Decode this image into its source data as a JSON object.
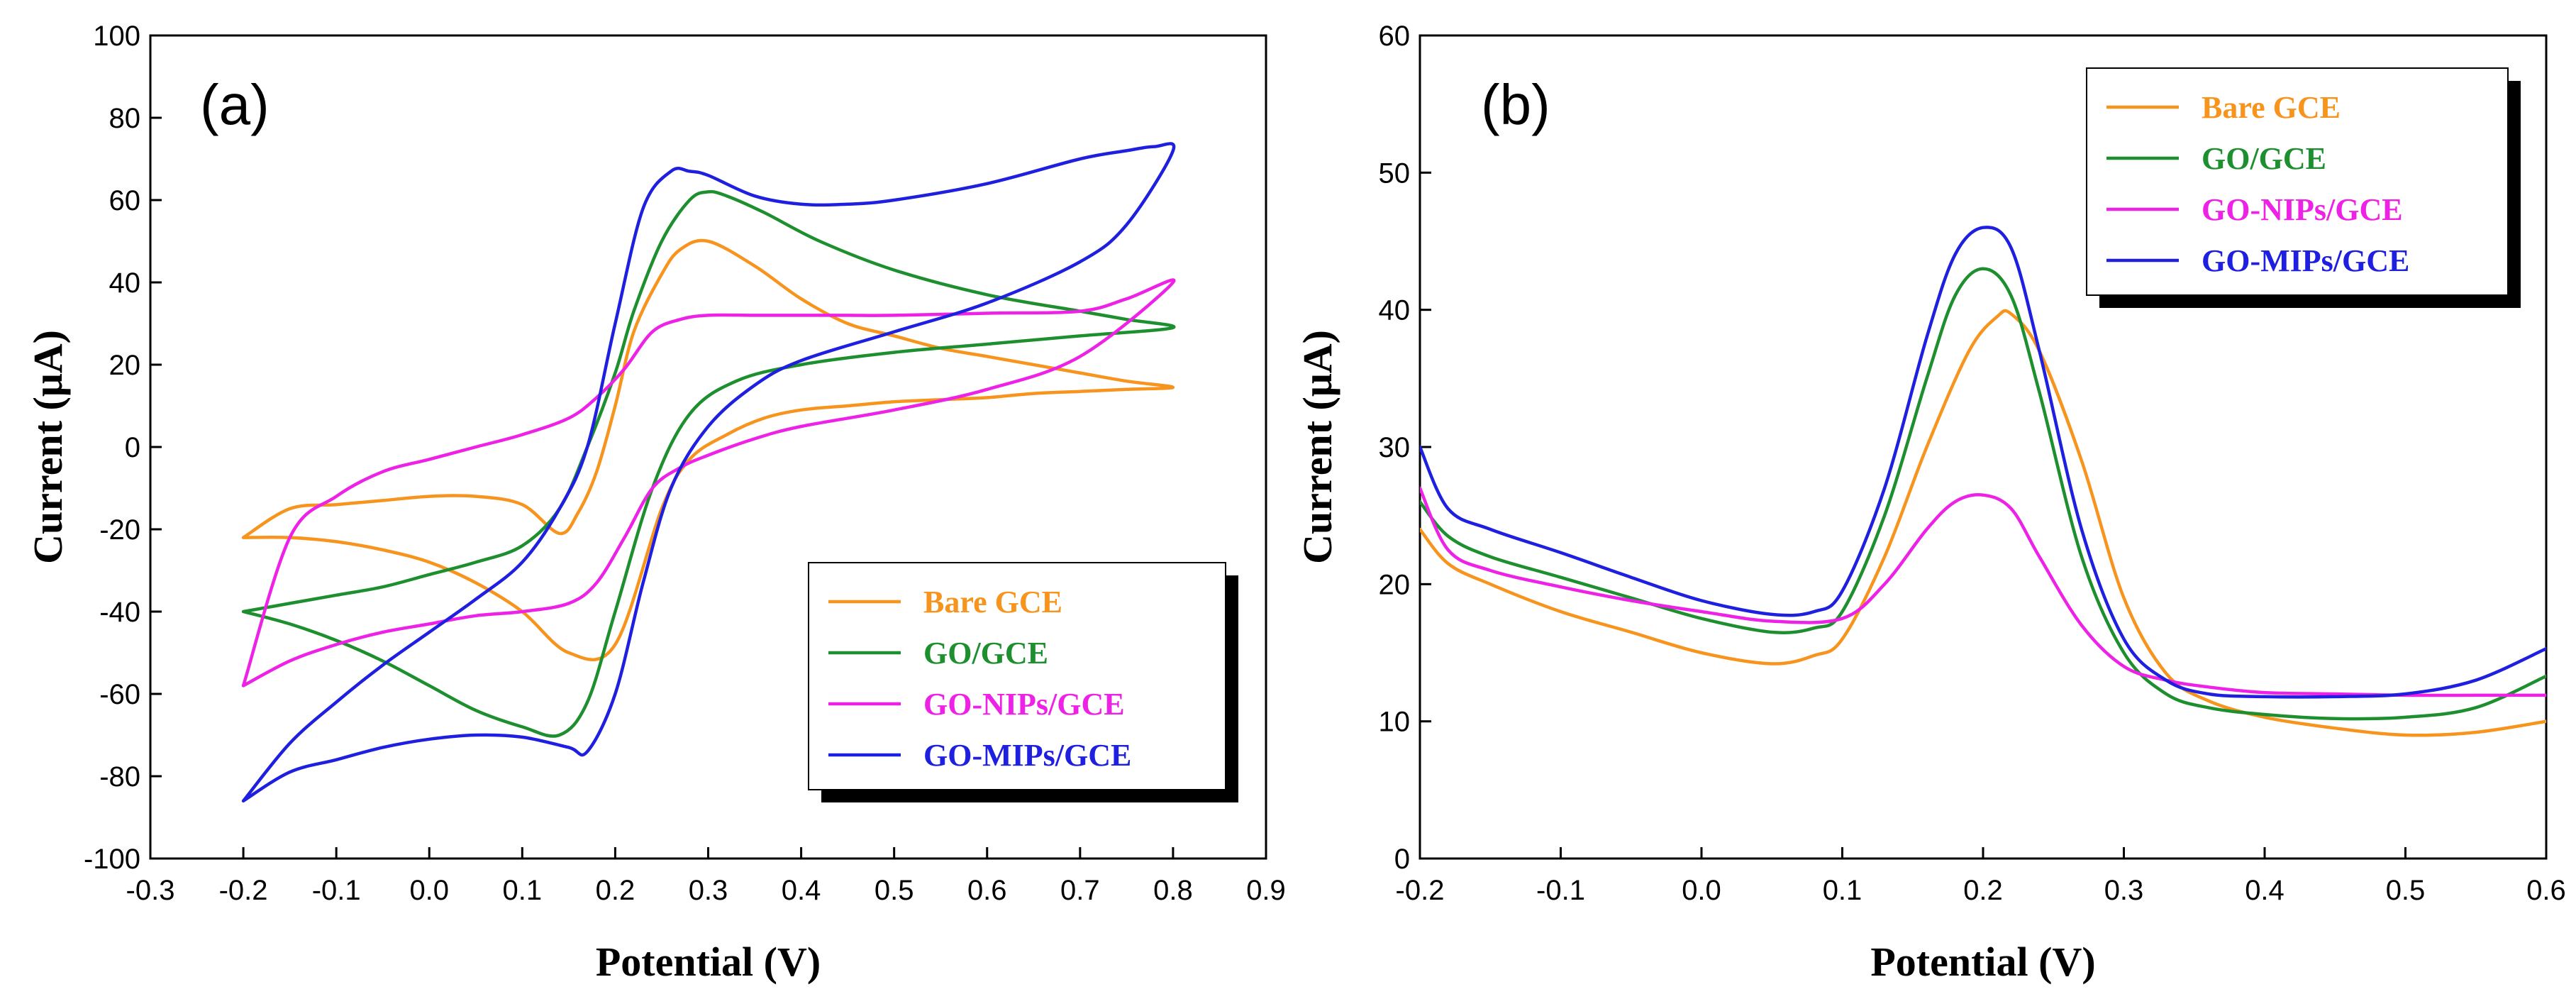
{
  "chart_data": [
    {
      "type": "line",
      "panel_label": "(a)",
      "xlabel": "Potential (V)",
      "ylabel": "Current (μA)",
      "xlim": [
        -0.3,
        0.9
      ],
      "ylim": [
        -100,
        100
      ],
      "xticks": [
        "-0.3",
        "-0.2",
        "-0.1",
        "0.0",
        "0.1",
        "0.2",
        "0.3",
        "0.4",
        "0.5",
        "0.6",
        "0.7",
        "0.8",
        "0.9"
      ],
      "yticks": [
        "-100",
        "-80",
        "-60",
        "-40",
        "-20",
        "0",
        "20",
        "40",
        "60",
        "80",
        "100"
      ],
      "legend_position": "bottom-right",
      "series": [
        {
          "name": "Bare GCE",
          "color": "#F7941D",
          "x": [
            -0.2,
            -0.15,
            -0.1,
            -0.05,
            0.0,
            0.05,
            0.1,
            0.15,
            0.2,
            0.25,
            0.28,
            0.32,
            0.36,
            0.4,
            0.45,
            0.5,
            0.55,
            0.6,
            0.65,
            0.7,
            0.75,
            0.8,
            0.75,
            0.7,
            0.65,
            0.6,
            0.55,
            0.5,
            0.45,
            0.4,
            0.35,
            0.3,
            0.27,
            0.25,
            0.22,
            0.2,
            0.18,
            0.16,
            0.14,
            0.1,
            0.05,
            0.0,
            -0.05,
            -0.1,
            -0.15,
            -0.2
          ],
          "y": [
            -22,
            -22,
            -23,
            -25,
            -28,
            -33,
            -40,
            -50,
            -48,
            -15,
            -3,
            3,
            7,
            9,
            10,
            11,
            11.5,
            12,
            13,
            13.5,
            14,
            14.5,
            16,
            18,
            20,
            22,
            24,
            27,
            30,
            36,
            44,
            50,
            48,
            42,
            28,
            10,
            -6,
            -16,
            -21,
            -14,
            -12,
            -12,
            -13,
            -14,
            -15,
            -22
          ]
        },
        {
          "name": "GO/GCE",
          "color": "#1E8F2E",
          "x": [
            -0.2,
            -0.15,
            -0.1,
            -0.05,
            0.0,
            0.05,
            0.1,
            0.14,
            0.17,
            0.2,
            0.24,
            0.28,
            0.33,
            0.4,
            0.5,
            0.6,
            0.7,
            0.8,
            0.75,
            0.7,
            0.6,
            0.5,
            0.42,
            0.36,
            0.32,
            0.3,
            0.28,
            0.25,
            0.22,
            0.2,
            0.17,
            0.14,
            0.1,
            0.05,
            0.0,
            -0.05,
            -0.1,
            -0.15,
            -0.2
          ],
          "y": [
            -40,
            -43,
            -47,
            -52,
            -58,
            -64,
            -68,
            -70,
            -62,
            -40,
            -10,
            8,
            16,
            20,
            23,
            25,
            27,
            29,
            31,
            33,
            37,
            43,
            50,
            57,
            61,
            62,
            60,
            50,
            33,
            18,
            0,
            -15,
            -24,
            -28,
            -31,
            -34,
            -36,
            -38,
            -40
          ]
        },
        {
          "name": "GO-NIPs/GCE",
          "color": "#EE22E6",
          "x": [
            -0.2,
            -0.15,
            -0.1,
            -0.05,
            0.0,
            0.05,
            0.1,
            0.15,
            0.18,
            0.21,
            0.24,
            0.27,
            0.3,
            0.35,
            0.4,
            0.5,
            0.6,
            0.7,
            0.8,
            0.75,
            0.7,
            0.6,
            0.5,
            0.45,
            0.4,
            0.35,
            0.3,
            0.27,
            0.24,
            0.21,
            0.18,
            0.15,
            0.1,
            0.05,
            0.0,
            -0.05,
            -0.1,
            -0.15,
            -0.2
          ],
          "y": [
            -58,
            -52,
            -48,
            -45,
            -43,
            -41,
            -40,
            -38,
            -33,
            -22,
            -10,
            -5,
            -2,
            2,
            5,
            9,
            14,
            22,
            40,
            36,
            33,
            32.5,
            32,
            32,
            32,
            32,
            32,
            31,
            28,
            19,
            12,
            7,
            3,
            0,
            -3,
            -6,
            -12,
            -22,
            -58
          ]
        },
        {
          "name": "GO-MIPs/GCE",
          "color": "#1F1FE0",
          "x": [
            -0.2,
            -0.15,
            -0.1,
            -0.05,
            0.0,
            0.05,
            0.1,
            0.15,
            0.17,
            0.2,
            0.23,
            0.26,
            0.3,
            0.35,
            0.4,
            0.5,
            0.6,
            0.7,
            0.75,
            0.8,
            0.78,
            0.75,
            0.7,
            0.6,
            0.5,
            0.45,
            0.4,
            0.35,
            0.3,
            0.28,
            0.26,
            0.23,
            0.2,
            0.17,
            0.14,
            0.1,
            0.05,
            0.0,
            -0.05,
            -0.1,
            -0.15,
            -0.2
          ],
          "y": [
            -86,
            -79,
            -76,
            -73,
            -71,
            -70,
            -70.5,
            -73,
            -74,
            -60,
            -33,
            -10,
            5,
            15,
            21,
            28,
            35,
            45,
            54,
            72,
            73,
            72,
            70,
            64,
            60,
            59,
            59,
            61,
            66,
            67,
            67,
            58,
            30,
            0,
            -15,
            -28,
            -37,
            -45,
            -53,
            -62,
            -72,
            -86
          ]
        }
      ]
    },
    {
      "type": "line",
      "panel_label": "(b)",
      "xlabel": "Potential (V)",
      "ylabel": "Current (μA)",
      "xlim": [
        -0.2,
        0.6
      ],
      "ylim": [
        0,
        60
      ],
      "xticks": [
        "-0.2",
        "-0.1",
        "0.0",
        "0.1",
        "0.2",
        "0.3",
        "0.4",
        "0.5",
        "0.6"
      ],
      "yticks": [
        "0",
        "10",
        "20",
        "30",
        "40",
        "50",
        "60"
      ],
      "legend_position": "top-right",
      "series": [
        {
          "name": "Bare GCE",
          "color": "#F7941D",
          "x": [
            -0.2,
            -0.18,
            -0.15,
            -0.1,
            -0.05,
            0.0,
            0.05,
            0.08,
            0.1,
            0.13,
            0.16,
            0.19,
            0.21,
            0.22,
            0.24,
            0.27,
            0.3,
            0.33,
            0.36,
            0.4,
            0.45,
            0.5,
            0.55,
            0.6
          ],
          "y": [
            24,
            21.5,
            20,
            18,
            16.5,
            15,
            14.2,
            14.8,
            16,
            22,
            30,
            37,
            39.5,
            39.7,
            37,
            29,
            19,
            13.5,
            11.5,
            10.3,
            9.5,
            9,
            9.2,
            10
          ]
        },
        {
          "name": "GO/GCE",
          "color": "#1E8F2E",
          "x": [
            -0.2,
            -0.18,
            -0.15,
            -0.1,
            -0.05,
            0.0,
            0.05,
            0.08,
            0.1,
            0.13,
            0.16,
            0.18,
            0.2,
            0.22,
            0.24,
            0.27,
            0.3,
            0.33,
            0.36,
            0.4,
            0.45,
            0.5,
            0.55,
            0.6
          ],
          "y": [
            26,
            23.5,
            22,
            20.5,
            19,
            17.5,
            16.5,
            16.8,
            18,
            25,
            35,
            41,
            43,
            41,
            34,
            22,
            15,
            12,
            11,
            10.5,
            10.2,
            10.3,
            11,
            13.3
          ]
        },
        {
          "name": "GO-NIPs/GCE",
          "color": "#EE22E6",
          "x": [
            -0.2,
            -0.18,
            -0.15,
            -0.1,
            -0.05,
            0.0,
            0.05,
            0.1,
            0.13,
            0.16,
            0.18,
            0.2,
            0.22,
            0.24,
            0.27,
            0.3,
            0.33,
            0.36,
            0.4,
            0.45,
            0.5,
            0.55,
            0.6
          ],
          "y": [
            27,
            22.5,
            21,
            19.8,
            18.8,
            18,
            17.3,
            17.5,
            20,
            24,
            26,
            26.5,
            25.5,
            22,
            17,
            14,
            13,
            12.5,
            12.1,
            12,
            11.9,
            11.9,
            11.9
          ]
        },
        {
          "name": "GO-MIPs/GCE",
          "color": "#1F1FE0",
          "x": [
            -0.2,
            -0.18,
            -0.15,
            -0.1,
            -0.05,
            0.0,
            0.05,
            0.08,
            0.1,
            0.13,
            0.16,
            0.18,
            0.2,
            0.22,
            0.24,
            0.27,
            0.3,
            0.33,
            0.36,
            0.4,
            0.45,
            0.5,
            0.55,
            0.6
          ],
          "y": [
            30,
            25.5,
            24,
            22.3,
            20.5,
            18.8,
            17.8,
            18,
            19.5,
            27,
            38,
            44,
            46,
            44.5,
            37,
            24,
            16,
            13,
            12,
            11.8,
            11.8,
            12,
            13,
            15.3
          ]
        }
      ]
    }
  ]
}
